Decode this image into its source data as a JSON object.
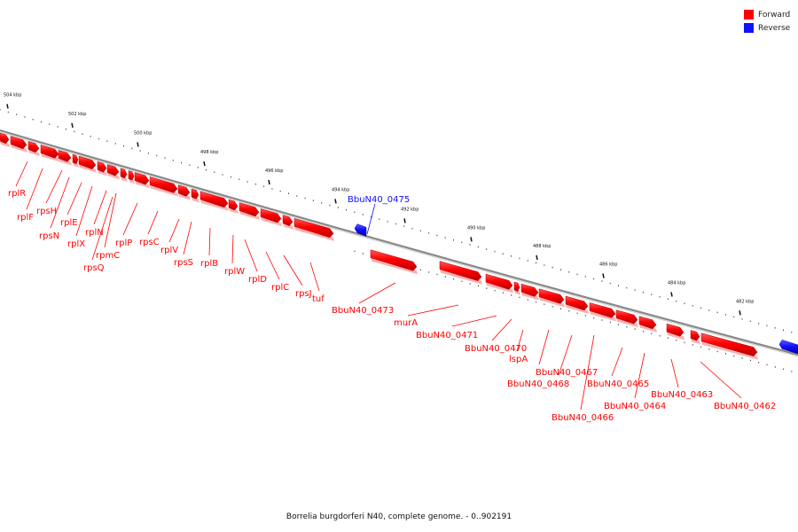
{
  "legend": [
    {
      "label": "Forward",
      "color": "#ff0000"
    },
    {
      "label": "Reverse",
      "color": "#1010ff"
    }
  ],
  "caption": "Borrelia burgdorferi N40, complete genome. - 0..902191",
  "colors": {
    "forward": "#ff0000",
    "reverse": "#1010ff",
    "backbone": "#888888"
  },
  "ticks": [
    "504 kbp",
    "502 kbp",
    "500 kbp",
    "498 kbp",
    "496 kbp",
    "494 kbp",
    "492 kbp",
    "490 kbp",
    "488 kbp",
    "486 kbp",
    "484 kbp",
    "482 kbp"
  ],
  "genes": [
    {
      "name": "rplR",
      "strand": "forward"
    },
    {
      "name": "rplF",
      "strand": "forward"
    },
    {
      "name": "rpsH",
      "strand": "forward"
    },
    {
      "name": "rpsN",
      "strand": "forward"
    },
    {
      "name": "rplE",
      "strand": "forward"
    },
    {
      "name": "rplX",
      "strand": "forward"
    },
    {
      "name": "rplN",
      "strand": "forward"
    },
    {
      "name": "rpmC",
      "strand": "forward"
    },
    {
      "name": "rpsQ",
      "strand": "forward"
    },
    {
      "name": "rplP",
      "strand": "forward"
    },
    {
      "name": "rpsC",
      "strand": "forward"
    },
    {
      "name": "rplV",
      "strand": "forward"
    },
    {
      "name": "rpsS",
      "strand": "forward"
    },
    {
      "name": "rplB",
      "strand": "forward"
    },
    {
      "name": "rplW",
      "strand": "forward"
    },
    {
      "name": "rplD",
      "strand": "forward"
    },
    {
      "name": "rplC",
      "strand": "forward"
    },
    {
      "name": "rpsJ",
      "strand": "forward"
    },
    {
      "name": "tuf",
      "strand": "forward"
    },
    {
      "name": "BbuN40_0475",
      "strand": "reverse"
    },
    {
      "name": "BbuN40_0473",
      "strand": "forward"
    },
    {
      "name": "murA",
      "strand": "forward"
    },
    {
      "name": "BbuN40_0471",
      "strand": "forward"
    },
    {
      "name": "BbuN40_0470",
      "strand": "forward"
    },
    {
      "name": "lspA",
      "strand": "forward"
    },
    {
      "name": "BbuN40_0467",
      "strand": "forward"
    },
    {
      "name": "BbuN40_0468",
      "strand": "forward"
    },
    {
      "name": "BbuN40_0465",
      "strand": "forward"
    },
    {
      "name": "BbuN40_0464",
      "strand": "forward"
    },
    {
      "name": "BbuN40_0466",
      "strand": "forward"
    },
    {
      "name": "BbuN40_0463",
      "strand": "forward"
    },
    {
      "name": "BbuN40_0462",
      "strand": "forward"
    }
  ]
}
